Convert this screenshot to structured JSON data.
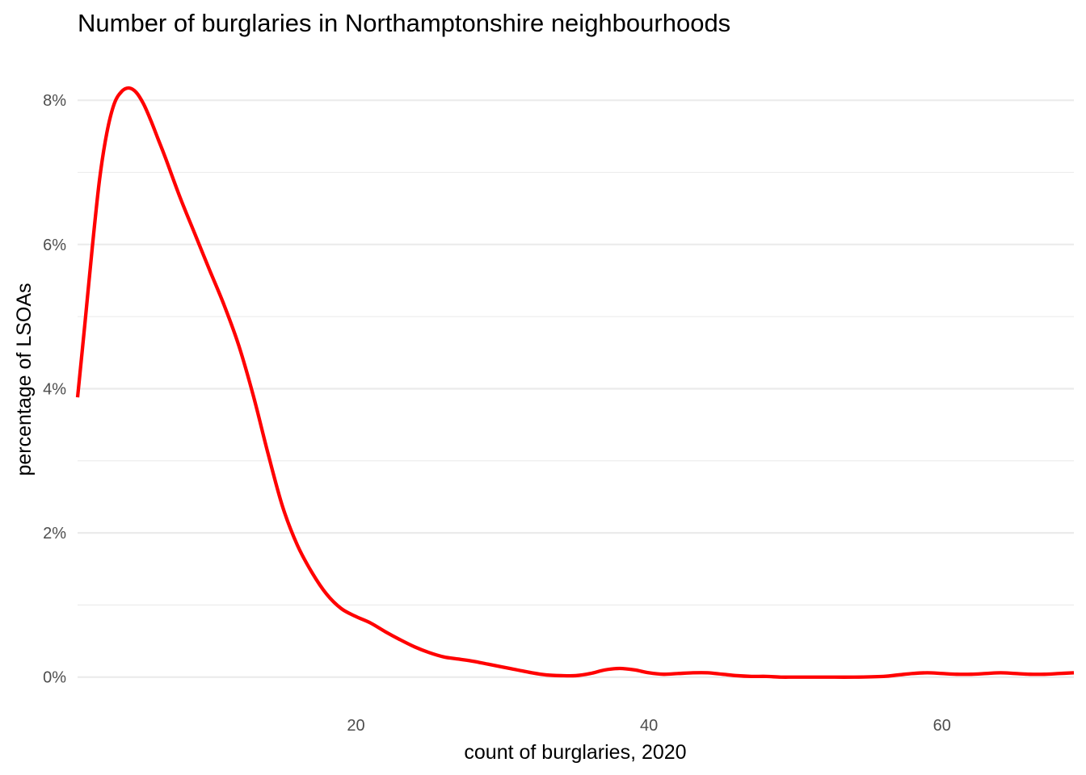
{
  "chart_data": {
    "type": "line",
    "title": "Number of burglaries in Northamptonshire neighbourhoods",
    "xlabel": "count of burglaries, 2020",
    "ylabel": "percentage of LSOAs",
    "xlim": [
      1,
      69
    ],
    "ylim": [
      -0.0035,
      0.0845
    ],
    "x_ticks": [
      20,
      40,
      60
    ],
    "x_tick_labels": [
      "20",
      "40",
      "60"
    ],
    "y_ticks": [
      0,
      0.02,
      0.04,
      0.06,
      0.08
    ],
    "y_tick_labels": [
      "0%",
      "2%",
      "4%",
      "6%",
      "8%"
    ],
    "grid": true,
    "legend": "none",
    "line_color": "#ff0000",
    "series": [
      {
        "x": [
          1,
          1.5,
          2,
          2.5,
          3,
          3.5,
          4,
          4.5,
          5,
          5.5,
          6,
          6.5,
          7,
          8,
          9,
          10,
          11,
          12,
          13,
          14,
          15,
          16,
          17,
          18,
          19,
          20,
          21,
          22,
          23,
          24,
          25,
          26,
          27,
          28,
          29,
          30,
          31,
          32,
          33,
          34,
          35,
          36,
          37,
          38,
          39,
          40,
          41,
          42,
          43,
          44,
          45,
          46,
          47,
          48,
          49,
          50,
          52,
          54,
          56,
          57,
          58,
          59,
          60,
          61,
          62,
          63,
          64,
          65,
          66,
          67,
          68,
          69
        ],
        "y": [
          0.0388,
          0.049,
          0.0595,
          0.069,
          0.0755,
          0.0795,
          0.0812,
          0.0817,
          0.0811,
          0.0795,
          0.0772,
          0.0746,
          0.072,
          0.0665,
          0.0615,
          0.0565,
          0.0516,
          0.046,
          0.039,
          0.031,
          0.0236,
          0.0183,
          0.0145,
          0.0115,
          0.0095,
          0.0084,
          0.0075,
          0.0063,
          0.0052,
          0.0042,
          0.0034,
          0.0028,
          0.0025,
          0.0022,
          0.0018,
          0.0014,
          0.001,
          0.0006,
          0.0003,
          0.0002,
          0.0002,
          0.0005,
          0.001,
          0.0012,
          0.001,
          0.0006,
          0.0004,
          0.0005,
          0.0006,
          0.0006,
          0.0004,
          0.0002,
          0.0001,
          0.0001,
          0,
          0,
          0,
          0,
          0.0001,
          0.0003,
          0.0005,
          0.0006,
          0.0005,
          0.0004,
          0.0004,
          0.0005,
          0.0006,
          0.0005,
          0.0004,
          0.0004,
          0.0005,
          0.0006
        ]
      }
    ]
  }
}
